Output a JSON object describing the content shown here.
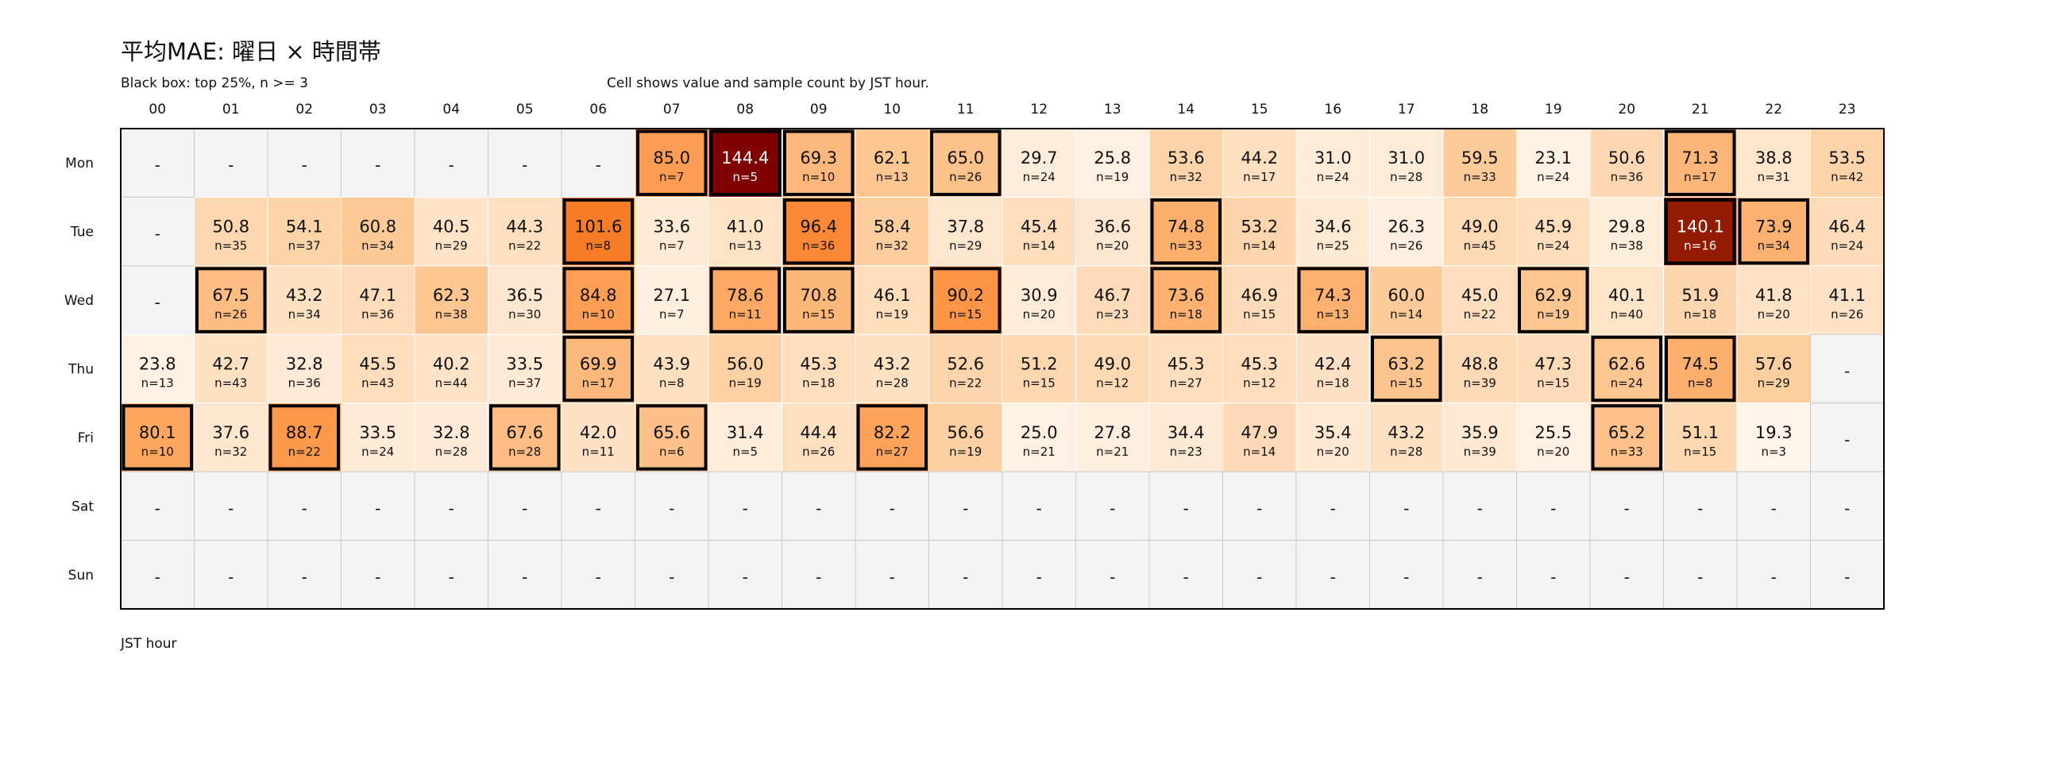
{
  "chart_data": {
    "type": "heatmap",
    "title": "平均MAE: 曜日 × 時間帯",
    "subtitle_left": "Black box: top 25%, n >= 3",
    "subtitle_center": "Cell shows value and sample count by JST hour.",
    "xlabel": "JST hour",
    "empty_symbol": "-",
    "count_prefix": "n=",
    "x": [
      "00",
      "01",
      "02",
      "03",
      "04",
      "05",
      "06",
      "07",
      "08",
      "09",
      "10",
      "11",
      "12",
      "13",
      "14",
      "15",
      "16",
      "17",
      "18",
      "19",
      "20",
      "21",
      "22",
      "23"
    ],
    "y": [
      "Mon",
      "Tue",
      "Wed",
      "Thu",
      "Fri",
      "Sat",
      "Sun"
    ],
    "color_range": [
      19.3,
      144.4
    ],
    "colors": {
      "empty": "#f3f3f3",
      "grid": "#c8c8c8",
      "highlight_border": "#000000",
      "scale_low": "#fff5eb",
      "scale_high": "#7f0000"
    },
    "values": [
      [
        null,
        null,
        null,
        null,
        null,
        null,
        null,
        85.0,
        144.4,
        69.3,
        62.1,
        65.0,
        29.7,
        25.8,
        53.6,
        44.2,
        31.0,
        31.0,
        59.5,
        23.1,
        50.6,
        71.3,
        38.8,
        53.5
      ],
      [
        null,
        50.8,
        54.1,
        60.8,
        40.5,
        44.3,
        101.6,
        33.6,
        41.0,
        96.4,
        58.4,
        37.8,
        45.4,
        36.6,
        74.8,
        53.2,
        34.6,
        26.3,
        49.0,
        45.9,
        29.8,
        140.1,
        73.9,
        46.4
      ],
      [
        null,
        67.5,
        43.2,
        47.1,
        62.3,
        36.5,
        84.8,
        27.1,
        78.6,
        70.8,
        46.1,
        90.2,
        30.9,
        46.7,
        73.6,
        46.9,
        74.3,
        60.0,
        45.0,
        62.9,
        40.1,
        51.9,
        41.8,
        41.1
      ],
      [
        23.8,
        42.7,
        32.8,
        45.5,
        40.2,
        33.5,
        69.9,
        43.9,
        56.0,
        45.3,
        43.2,
        52.6,
        51.2,
        49.0,
        45.3,
        45.3,
        42.4,
        63.2,
        48.8,
        47.3,
        62.6,
        74.5,
        57.6,
        null
      ],
      [
        80.1,
        37.6,
        88.7,
        33.5,
        32.8,
        67.6,
        42.0,
        65.6,
        31.4,
        44.4,
        82.2,
        56.6,
        25.0,
        27.8,
        34.4,
        47.9,
        35.4,
        43.2,
        35.9,
        25.5,
        65.2,
        51.1,
        19.3,
        null
      ],
      [
        null,
        null,
        null,
        null,
        null,
        null,
        null,
        null,
        null,
        null,
        null,
        null,
        null,
        null,
        null,
        null,
        null,
        null,
        null,
        null,
        null,
        null,
        null,
        null
      ],
      [
        null,
        null,
        null,
        null,
        null,
        null,
        null,
        null,
        null,
        null,
        null,
        null,
        null,
        null,
        null,
        null,
        null,
        null,
        null,
        null,
        null,
        null,
        null,
        null
      ]
    ],
    "counts": [
      [
        null,
        null,
        null,
        null,
        null,
        null,
        null,
        7,
        5,
        10,
        13,
        26,
        24,
        19,
        32,
        17,
        24,
        28,
        33,
        24,
        36,
        17,
        31,
        42
      ],
      [
        null,
        35,
        37,
        34,
        29,
        22,
        8,
        7,
        13,
        36,
        32,
        29,
        14,
        20,
        33,
        14,
        25,
        26,
        45,
        24,
        38,
        16,
        34,
        24
      ],
      [
        null,
        26,
        34,
        36,
        38,
        30,
        10,
        7,
        11,
        15,
        19,
        15,
        20,
        23,
        18,
        15,
        13,
        14,
        22,
        19,
        40,
        18,
        20,
        26
      ],
      [
        13,
        43,
        36,
        43,
        44,
        37,
        17,
        8,
        19,
        18,
        28,
        22,
        15,
        12,
        27,
        12,
        18,
        15,
        39,
        15,
        24,
        8,
        29,
        null
      ],
      [
        10,
        32,
        22,
        24,
        28,
        28,
        11,
        6,
        5,
        26,
        27,
        19,
        21,
        21,
        23,
        14,
        20,
        28,
        39,
        20,
        33,
        15,
        3,
        null
      ],
      [
        null,
        null,
        null,
        null,
        null,
        null,
        null,
        null,
        null,
        null,
        null,
        null,
        null,
        null,
        null,
        null,
        null,
        null,
        null,
        null,
        null,
        null,
        null,
        null
      ],
      [
        null,
        null,
        null,
        null,
        null,
        null,
        null,
        null,
        null,
        null,
        null,
        null,
        null,
        null,
        null,
        null,
        null,
        null,
        null,
        null,
        null,
        null,
        null,
        null
      ]
    ],
    "highlighted": [
      [
        false,
        false,
        false,
        false,
        false,
        false,
        false,
        true,
        true,
        true,
        false,
        true,
        false,
        false,
        false,
        false,
        false,
        false,
        false,
        false,
        false,
        true,
        false,
        false
      ],
      [
        false,
        false,
        false,
        false,
        false,
        false,
        true,
        false,
        false,
        true,
        false,
        false,
        false,
        false,
        true,
        false,
        false,
        false,
        false,
        false,
        false,
        true,
        true,
        false
      ],
      [
        false,
        true,
        false,
        false,
        false,
        false,
        true,
        false,
        true,
        true,
        false,
        true,
        false,
        false,
        true,
        false,
        true,
        false,
        false,
        true,
        false,
        false,
        false,
        false
      ],
      [
        false,
        false,
        false,
        false,
        false,
        false,
        true,
        false,
        false,
        false,
        false,
        false,
        false,
        false,
        false,
        false,
        false,
        true,
        false,
        false,
        true,
        true,
        false,
        false
      ],
      [
        true,
        false,
        true,
        false,
        false,
        true,
        false,
        true,
        false,
        false,
        true,
        false,
        false,
        false,
        false,
        false,
        false,
        false,
        false,
        false,
        true,
        false,
        false,
        false
      ],
      [
        false,
        false,
        false,
        false,
        false,
        false,
        false,
        false,
        false,
        false,
        false,
        false,
        false,
        false,
        false,
        false,
        false,
        false,
        false,
        false,
        false,
        false,
        false,
        false
      ],
      [
        false,
        false,
        false,
        false,
        false,
        false,
        false,
        false,
        false,
        false,
        false,
        false,
        false,
        false,
        false,
        false,
        false,
        false,
        false,
        false,
        false,
        false,
        false,
        false
      ]
    ]
  }
}
